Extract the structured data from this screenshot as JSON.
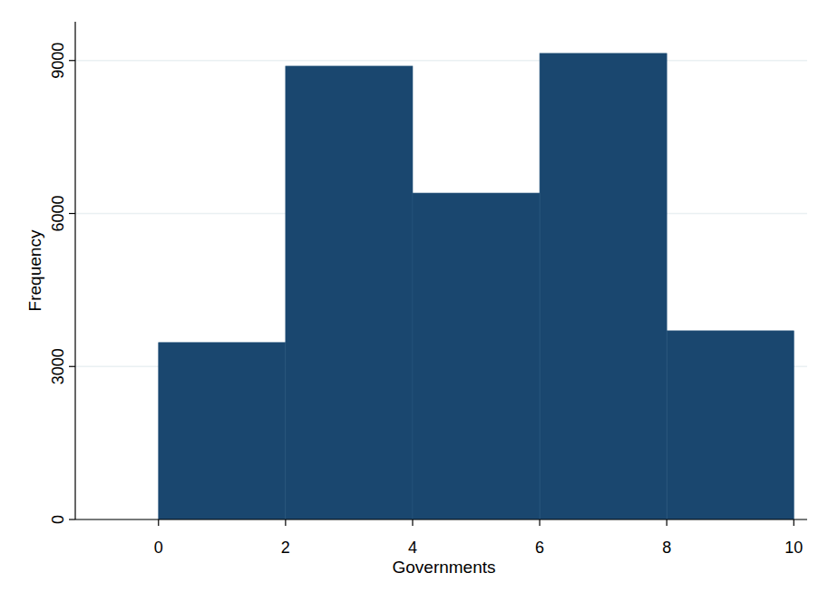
{
  "chart_data": {
    "type": "histogram",
    "x_label": "Governments",
    "y_label": "Frequency",
    "bins": [
      0,
      2,
      4,
      6,
      8,
      10
    ],
    "values": [
      3470,
      8890,
      6400,
      9140,
      3700
    ],
    "color": "#1a476f",
    "xlim": [
      -1.31,
      10.21
    ],
    "xticks": [
      0,
      2,
      4,
      6,
      8,
      10
    ],
    "ylim": [
      0,
      9760
    ],
    "yticks": [
      0,
      3000,
      6000,
      9000
    ],
    "grid": true
  }
}
